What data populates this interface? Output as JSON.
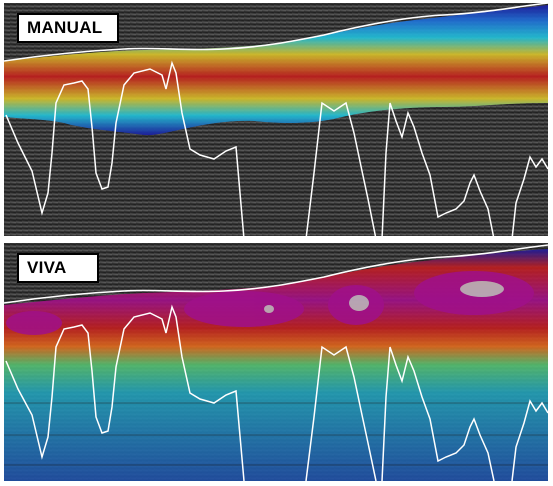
{
  "panels": [
    {
      "label": "MANUAL"
    },
    {
      "label": "VIVA"
    }
  ],
  "colors": {
    "background": "#3a3a3a",
    "seismic_dark": "#2e2e2e",
    "overlay_line": "#ffffff",
    "ramp": [
      "#1a1aa0",
      "#1f6fd6",
      "#22c0d8",
      "#55c070",
      "#d6c02a",
      "#e06a1c",
      "#c01e1e",
      "#a0108a"
    ]
  },
  "icons": {
    "panel_image": "seismic-section-image",
    "curve": "well-log-curve"
  }
}
